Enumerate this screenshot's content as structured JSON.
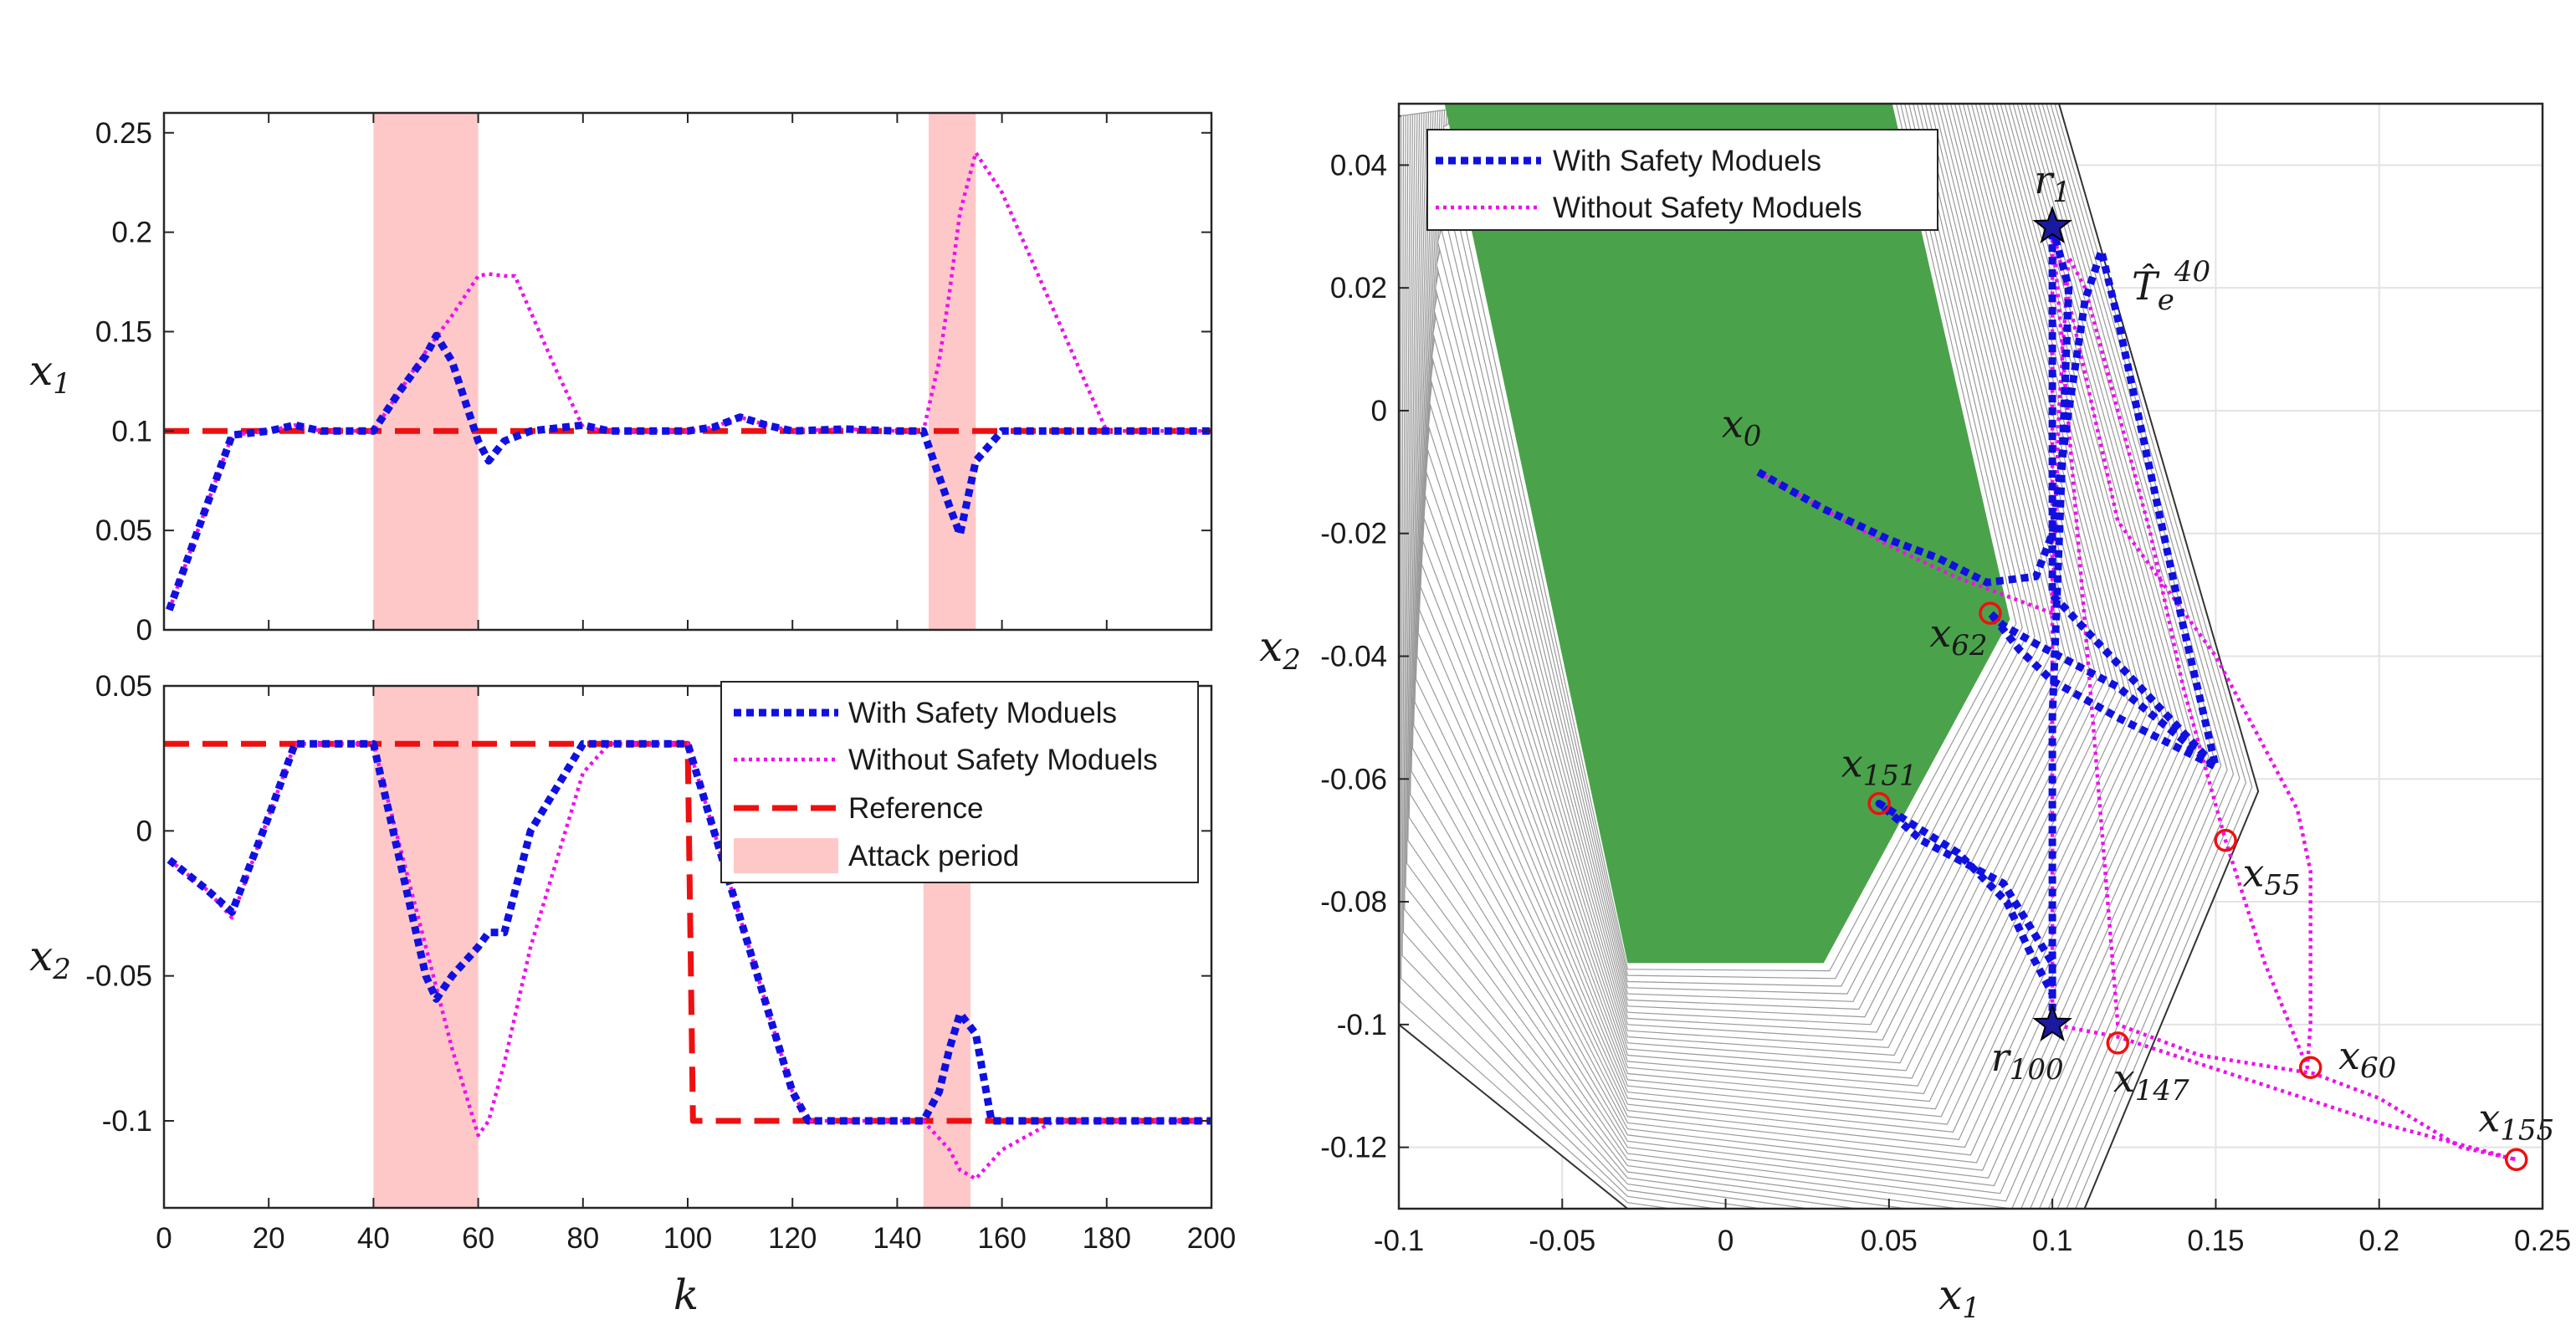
{
  "chart_data": [
    {
      "type": "line",
      "panel": "top-left",
      "xlabel": "",
      "ylabel": "x1",
      "xlim": [
        0,
        200
      ],
      "ylim": [
        0,
        0.26
      ],
      "xticks": [
        "0",
        "20",
        "40",
        "60",
        "80",
        "100",
        "120",
        "140",
        "160",
        "180",
        "200"
      ],
      "yticks": [
        "0",
        "0.05",
        "0.1",
        "0.15",
        "0.2",
        "0.25"
      ],
      "attack_periods": [
        [
          40,
          60
        ],
        [
          146,
          155
        ]
      ],
      "series": [
        {
          "name": "With Safety Moduels",
          "style": "dashed-blue",
          "x": [
            1,
            13,
            20,
            25,
            30,
            40,
            45,
            50,
            52,
            55,
            60,
            62,
            65,
            70,
            80,
            85,
            90,
            100,
            105,
            110,
            115,
            120,
            130,
            140,
            145,
            150,
            152,
            155,
            160,
            170,
            180,
            190,
            200
          ],
          "y": [
            0.01,
            0.098,
            0.1,
            0.103,
            0.1,
            0.1,
            0.12,
            0.138,
            0.148,
            0.135,
            0.095,
            0.085,
            0.095,
            0.1,
            0.103,
            0.1,
            0.1,
            0.1,
            0.102,
            0.107,
            0.103,
            0.1,
            0.101,
            0.1,
            0.1,
            0.062,
            0.048,
            0.085,
            0.1,
            0.1,
            0.1,
            0.1,
            0.1
          ]
        },
        {
          "name": "Without Safety Moduels",
          "style": "dotted-magenta",
          "x": [
            1,
            13,
            20,
            25,
            30,
            40,
            50,
            55,
            60,
            62,
            65,
            67,
            70,
            75,
            80,
            85,
            90,
            100,
            105,
            110,
            115,
            120,
            130,
            140,
            145,
            148,
            150,
            152,
            155,
            160,
            170,
            175,
            180,
            190,
            200
          ],
          "y": [
            0.01,
            0.098,
            0.1,
            0.103,
            0.1,
            0.1,
            0.14,
            0.158,
            0.178,
            0.179,
            0.178,
            0.178,
            0.16,
            0.13,
            0.102,
            0.1,
            0.1,
            0.1,
            0.102,
            0.107,
            0.103,
            0.1,
            0.101,
            0.1,
            0.1,
            0.135,
            0.17,
            0.21,
            0.24,
            0.22,
            0.16,
            0.13,
            0.1,
            0.1,
            0.1
          ]
        },
        {
          "name": "Reference",
          "style": "dashed-red",
          "x": [
            0,
            200
          ],
          "y": [
            0.1,
            0.1
          ]
        }
      ]
    },
    {
      "type": "line",
      "panel": "bottom-left",
      "xlabel": "k",
      "ylabel": "x2",
      "xlim": [
        0,
        200
      ],
      "ylim": [
        -0.13,
        0.05
      ],
      "xticks": [
        "0",
        "20",
        "40",
        "60",
        "80",
        "100",
        "120",
        "140",
        "160",
        "180",
        "200"
      ],
      "yticks": [
        "0.05",
        "0",
        "-0.05",
        "-0.1"
      ],
      "attack_periods": [
        [
          40,
          60
        ],
        [
          145,
          154
        ]
      ],
      "legend": {
        "placement": "top-right",
        "entries": [
          "With Safety Moduels",
          "Without Safety Moduels",
          "Reference",
          "Attack period"
        ]
      },
      "series": [
        {
          "name": "With Safety Moduels",
          "style": "dashed-blue",
          "x": [
            1,
            8,
            13,
            20,
            25,
            30,
            40,
            45,
            50,
            52,
            55,
            60,
            62,
            65,
            70,
            80,
            85,
            90,
            100,
            110,
            120,
            123,
            130,
            140,
            145,
            148,
            150,
            152,
            155,
            158,
            160,
            170,
            180,
            190,
            200
          ],
          "y": [
            -0.01,
            -0.02,
            -0.028,
            0.005,
            0.03,
            0.03,
            0.03,
            -0.01,
            -0.05,
            -0.058,
            -0.05,
            -0.04,
            -0.035,
            -0.035,
            0,
            0.03,
            0.03,
            0.03,
            0.03,
            -0.03,
            -0.09,
            -0.1,
            -0.1,
            -0.1,
            -0.1,
            -0.09,
            -0.075,
            -0.063,
            -0.07,
            -0.1,
            -0.1,
            -0.1,
            -0.1,
            -0.1,
            -0.1
          ]
        },
        {
          "name": "Without Safety Moduels",
          "style": "dotted-magenta",
          "x": [
            1,
            8,
            13,
            20,
            25,
            30,
            40,
            45,
            50,
            55,
            60,
            62,
            65,
            70,
            80,
            85,
            90,
            100,
            110,
            120,
            123,
            130,
            140,
            145,
            150,
            152,
            155,
            160,
            170,
            180,
            190,
            200
          ],
          "y": [
            -0.01,
            -0.02,
            -0.03,
            0.005,
            0.03,
            0.03,
            0.03,
            -0.005,
            -0.04,
            -0.075,
            -0.105,
            -0.1,
            -0.08,
            -0.04,
            0.02,
            0.03,
            0.03,
            0.03,
            -0.03,
            -0.09,
            -0.1,
            -0.1,
            -0.1,
            -0.1,
            -0.11,
            -0.117,
            -0.12,
            -0.11,
            -0.1,
            -0.1,
            -0.1,
            -0.1
          ]
        },
        {
          "name": "Reference",
          "style": "dashed-red",
          "x": [
            0,
            100,
            101,
            200
          ],
          "y": [
            0.03,
            0.03,
            -0.1,
            -0.1
          ]
        }
      ]
    },
    {
      "type": "line",
      "panel": "right",
      "xlabel": "x1",
      "ylabel": "x2",
      "xlim": [
        -0.1,
        0.25
      ],
      "ylim": [
        -0.13,
        0.05
      ],
      "grid": true,
      "xticks": [
        "-0.1",
        "-0.05",
        "0",
        "0.05",
        "0.1",
        "0.15",
        "0.2",
        "0.25"
      ],
      "yticks": [
        "0.04",
        "0.02",
        "0",
        "-0.02",
        "-0.04",
        "-0.06",
        "-0.08",
        "-0.1",
        "-0.12"
      ],
      "legend": {
        "placement": "top-left",
        "entries": [
          "With Safety Moduels",
          "Without Safety Moduels"
        ]
      },
      "green_set": {
        "color": "#4aa34a",
        "points": [
          [
            -0.072,
            0.05
          ],
          [
            0.051,
            0.05
          ],
          [
            0.087,
            -0.034
          ],
          [
            0.03,
            -0.09
          ],
          [
            -0.03,
            -0.09
          ],
          [
            -0.086,
            0.05
          ]
        ]
      },
      "safe_set_outer": [
        [
          -0.1,
          0.048
        ],
        [
          0.102,
          0.05
        ],
        [
          0.163,
          -0.062
        ],
        [
          0.102,
          -0.14
        ],
        [
          -0.03,
          -0.13
        ],
        [
          -0.1,
          -0.1
        ]
      ],
      "series": [
        {
          "name": "With Safety Moduels",
          "style": "dashed-blue",
          "x": [
            0.01,
            0.03,
            0.05,
            0.065,
            0.08,
            0.095,
            0.1,
            0.105,
            0.11,
            0.115,
            0.12,
            0.13,
            0.14,
            0.15,
            0.12,
            0.1,
            0.09,
            0.081,
            0.085,
            0.095,
            0.12,
            0.15,
            0.1,
            0.1,
            0.1,
            0.105,
            0.1,
            0.1,
            0.093,
            0.086,
            0.071,
            0.047,
            0.06,
            0.085,
            0.1,
            0.1,
            0.1,
            0.1
          ],
          "y": [
            -0.01,
            -0.016,
            -0.021,
            -0.024,
            -0.028,
            -0.027,
            -0.02,
            0.0,
            0.018,
            0.026,
            0.015,
            -0.01,
            -0.035,
            -0.058,
            -0.05,
            -0.044,
            -0.039,
            -0.033,
            -0.035,
            -0.038,
            -0.045,
            -0.058,
            -0.03,
            0.02,
            0.03,
            0.02,
            -0.05,
            -0.095,
            -0.088,
            -0.08,
            -0.072,
            -0.064,
            -0.07,
            -0.077,
            -0.09,
            -0.1,
            -0.1,
            -0.1
          ]
        },
        {
          "name": "Without Safety Moduels",
          "style": "dotted-magenta",
          "x": [
            0.01,
            0.03,
            0.05,
            0.07,
            0.09,
            0.1,
            0.102,
            0.105,
            0.11,
            0.12,
            0.13,
            0.14,
            0.153,
            0.165,
            0.178,
            0.179,
            0.179,
            0.175,
            0.15,
            0.12,
            0.1,
            0.12,
            0.145,
            0.18,
            0.2,
            0.225,
            0.242,
            0.2,
            0.16,
            0.12,
            0.1,
            0.1,
            0.1,
            0.1
          ],
          "y": [
            -0.01,
            -0.016,
            -0.022,
            -0.027,
            -0.031,
            -0.033,
            0.0,
            0.025,
            0.02,
            0.0,
            -0.02,
            -0.045,
            -0.07,
            -0.09,
            -0.107,
            -0.1,
            -0.075,
            -0.065,
            -0.04,
            -0.018,
            0.03,
            -0.1,
            -0.105,
            -0.108,
            -0.112,
            -0.12,
            -0.122,
            -0.116,
            -0.109,
            -0.102,
            -0.1,
            -0.03,
            0.02,
            0.03
          ]
        }
      ],
      "markers": [
        {
          "label": "r_1",
          "kind": "star",
          "x": 0.1,
          "y": 0.03
        },
        {
          "label": "r_100",
          "kind": "star",
          "x": 0.1,
          "y": -0.1
        },
        {
          "label": "x_0",
          "kind": "text",
          "x": 0.01,
          "y": -0.01
        },
        {
          "label": "x_62",
          "kind": "circle",
          "x": 0.081,
          "y": -0.033
        },
        {
          "label": "x_151",
          "kind": "circle",
          "x": 0.047,
          "y": -0.064
        },
        {
          "label": "x_55",
          "kind": "circle",
          "x": 0.153,
          "y": -0.07
        },
        {
          "label": "x_60",
          "kind": "circle",
          "x": 0.179,
          "y": -0.107
        },
        {
          "label": "x_147",
          "kind": "circle",
          "x": 0.12,
          "y": -0.103
        },
        {
          "label": "x_155",
          "kind": "circle",
          "x": 0.242,
          "y": -0.122
        }
      ],
      "set_label": "T_e^40"
    }
  ],
  "legend_labels": {
    "with": "With Safety Moduels",
    "without": "Without Safety Moduels",
    "reference": "Reference",
    "attack": "Attack period"
  },
  "colors": {
    "with": "#1010e0",
    "without": "#ee10ee",
    "reference": "#ee1010",
    "attack": "#ffc8c8",
    "green": "#4aa34a"
  }
}
